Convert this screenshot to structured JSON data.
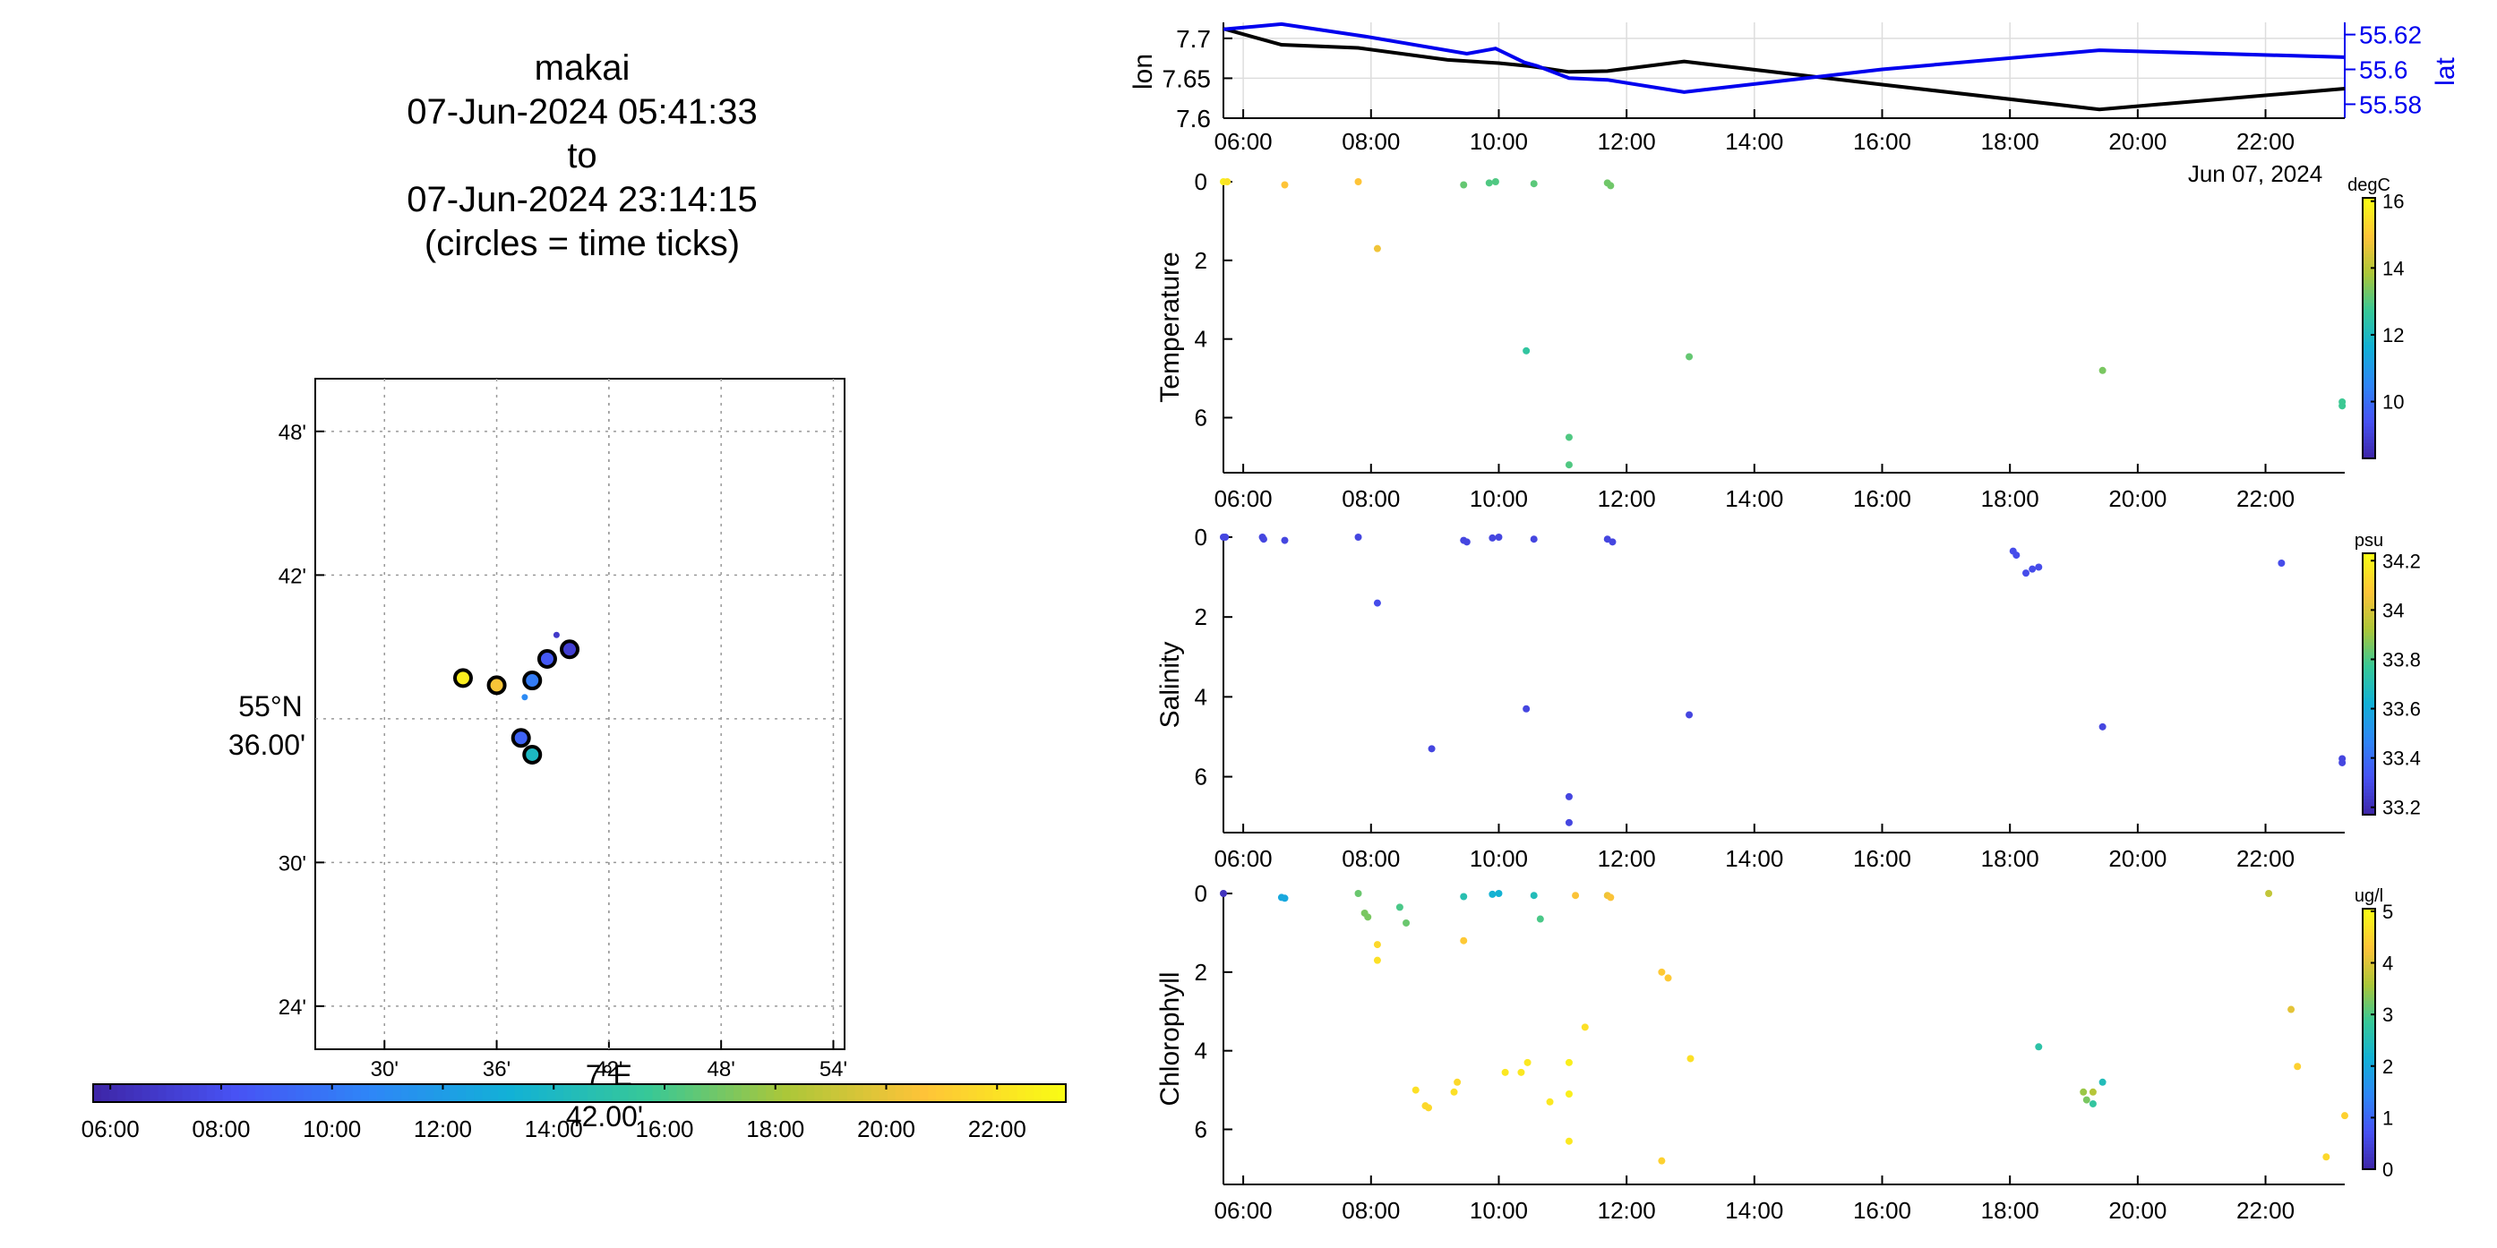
{
  "header": {
    "lines": [
      "makai",
      "07-Jun-2024 05:41:33",
      "to",
      "07-Jun-2024 23:14:15",
      "(circles = time ticks)"
    ]
  },
  "chart_data": [
    {
      "id": "map",
      "type": "scatter",
      "xlabel": "7°E 42.00'",
      "ylabel": "55°N 36.00'",
      "xticks": [
        "30'",
        "36'",
        "42'",
        "48'",
        "54'"
      ],
      "yticks": [
        "48'",
        "42'",
        "30'",
        "24'"
      ],
      "xlim_minutes": [
        26.3,
        54.6
      ],
      "ylim_minutes": [
        22.2,
        50.2
      ],
      "grid": true,
      "track_points": [
        {
          "lon_min": 34.2,
          "lat_min": 37.7,
          "hour": 22.6
        },
        {
          "lon_min": 36.0,
          "lat_min": 37.4,
          "hour": 20.5
        },
        {
          "lon_min": 37.9,
          "lat_min": 37.6,
          "hour": 10.2
        },
        {
          "lon_min": 38.7,
          "lat_min": 38.5,
          "hour": 8.5
        },
        {
          "lon_min": 39.9,
          "lat_min": 38.9,
          "hour": 7.1
        },
        {
          "lon_min": 37.3,
          "lat_min": 35.2,
          "hour": 9.0
        },
        {
          "lon_min": 37.9,
          "lat_min": 34.5,
          "hour": 14.0
        },
        {
          "lon_min": 37.5,
          "lat_min": 36.9,
          "hour": 10.9
        },
        {
          "lon_min": 39.2,
          "lat_min": 39.5,
          "hour": 6.8
        }
      ],
      "time_ticks": [
        {
          "lon_min": 34.2,
          "lat_min": 37.7,
          "hour": 22.6
        },
        {
          "lon_min": 36.0,
          "lat_min": 37.4,
          "hour": 20.5
        },
        {
          "lon_min": 37.9,
          "lat_min": 37.6,
          "hour": 10.2
        },
        {
          "lon_min": 38.7,
          "lat_min": 38.5,
          "hour": 8.5
        },
        {
          "lon_min": 39.9,
          "lat_min": 38.9,
          "hour": 7.1
        },
        {
          "lon_min": 37.3,
          "lat_min": 35.2,
          "hour": 9.0
        },
        {
          "lon_min": 37.9,
          "lat_min": 34.5,
          "hour": 14.0
        }
      ],
      "colorbar": {
        "ticks": [
          "06:00",
          "08:00",
          "10:00",
          "12:00",
          "14:00",
          "16:00",
          "18:00",
          "20:00",
          "22:00"
        ],
        "range_hours": [
          5.69,
          23.24
        ]
      }
    },
    {
      "id": "track",
      "type": "line",
      "ylabel": "lon",
      "ylabel_right": "lat",
      "date_label": "Jun 07, 2024",
      "xticks": [
        "06:00",
        "08:00",
        "10:00",
        "12:00",
        "14:00",
        "16:00",
        "18:00",
        "20:00",
        "22:00"
      ],
      "xlim_hours": [
        5.69,
        23.24
      ],
      "ylim_left": [
        7.6,
        7.72
      ],
      "yticks_left": [
        "7.7",
        "7.65",
        "7.6"
      ],
      "ylim_right": [
        55.572,
        55.627
      ],
      "yticks_right": [
        "55.62",
        "55.6",
        "55.58"
      ],
      "series": [
        {
          "name": "lon",
          "color": "#000000",
          "axis": "left",
          "points": [
            [
              5.69,
              7.712
            ],
            [
              6.6,
              7.692
            ],
            [
              7.8,
              7.688
            ],
            [
              9.2,
              7.673
            ],
            [
              10.0,
              7.669
            ],
            [
              10.5,
              7.665
            ],
            [
              11.1,
              7.658
            ],
            [
              11.7,
              7.659
            ],
            [
              12.9,
              7.671
            ],
            [
              16.0,
              7.642
            ],
            [
              19.4,
              7.611
            ],
            [
              23.24,
              7.637
            ]
          ]
        },
        {
          "name": "lat",
          "color": "#0000ee",
          "axis": "right",
          "points": [
            [
              5.69,
              55.623
            ],
            [
              6.6,
              55.626
            ],
            [
              7.9,
              55.619
            ],
            [
              9.5,
              55.609
            ],
            [
              9.95,
              55.612
            ],
            [
              10.4,
              55.604
            ],
            [
              10.6,
              55.602
            ],
            [
              11.1,
              55.595
            ],
            [
              11.7,
              55.594
            ],
            [
              12.9,
              55.587
            ],
            [
              16.0,
              55.6
            ],
            [
              19.4,
              55.611
            ],
            [
              23.24,
              55.607
            ]
          ]
        }
      ]
    },
    {
      "id": "temperature",
      "type": "scatter",
      "ylabel": "Temperature",
      "date_label": "Jun 07, 2024",
      "xticks": [
        "06:00",
        "08:00",
        "10:00",
        "12:00",
        "14:00",
        "16:00",
        "18:00",
        "20:00",
        "22:00"
      ],
      "yticks": [
        "0",
        "2",
        "4",
        "6"
      ],
      "xlim_hours": [
        5.69,
        23.24
      ],
      "ylim": [
        0,
        7.4
      ],
      "colorbar": {
        "unit": "degC",
        "range": [
          8.3,
          16.1
        ],
        "ticks": [
          "16",
          "14",
          "12",
          "10"
        ]
      },
      "points": [
        {
          "t": 5.69,
          "depth": 0.0,
          "value": 15.8
        },
        {
          "t": 5.75,
          "depth": 0.0,
          "value": 15.6
        },
        {
          "t": 6.65,
          "depth": 0.08,
          "value": 15.0
        },
        {
          "t": 7.8,
          "depth": 0.0,
          "value": 15.0
        },
        {
          "t": 8.1,
          "depth": 1.7,
          "value": 14.8
        },
        {
          "t": 9.45,
          "depth": 0.08,
          "value": 13.2
        },
        {
          "t": 9.85,
          "depth": 0.03,
          "value": 13.0
        },
        {
          "t": 9.95,
          "depth": 0.0,
          "value": 13.0
        },
        {
          "t": 10.55,
          "depth": 0.05,
          "value": 13.1
        },
        {
          "t": 11.7,
          "depth": 0.03,
          "value": 13.3
        },
        {
          "t": 11.75,
          "depth": 0.1,
          "value": 13.3
        },
        {
          "t": 10.43,
          "depth": 4.3,
          "value": 12.6
        },
        {
          "t": 12.98,
          "depth": 4.45,
          "value": 13.2
        },
        {
          "t": 11.1,
          "depth": 6.5,
          "value": 13.0
        },
        {
          "t": 11.1,
          "depth": 7.2,
          "value": 13.0
        },
        {
          "t": 19.45,
          "depth": 4.8,
          "value": 13.4
        },
        {
          "t": 23.2,
          "depth": 5.6,
          "value": 12.8
        },
        {
          "t": 23.2,
          "depth": 5.7,
          "value": 12.8
        }
      ]
    },
    {
      "id": "salinity",
      "type": "scatter",
      "ylabel": "Salinity",
      "date_label": "Jun 07, 2024",
      "xticks": [
        "06:00",
        "08:00",
        "10:00",
        "12:00",
        "14:00",
        "16:00",
        "18:00",
        "20:00",
        "22:00"
      ],
      "yticks": [
        "0",
        "2",
        "4",
        "6"
      ],
      "xlim_hours": [
        5.69,
        23.24
      ],
      "ylim": [
        0,
        7.4
      ],
      "colorbar": {
        "unit": "psu",
        "range": [
          33.17,
          34.23
        ],
        "ticks": [
          "34.2",
          "34",
          "33.8",
          "33.6",
          "33.4",
          "33.2"
        ]
      },
      "points": [
        {
          "t": 5.69,
          "depth": 0.0,
          "value": 33.28
        },
        {
          "t": 5.72,
          "depth": 0.0,
          "value": 33.28
        },
        {
          "t": 6.3,
          "depth": 0.0,
          "value": 33.28
        },
        {
          "t": 6.32,
          "depth": 0.05,
          "value": 33.28
        },
        {
          "t": 6.65,
          "depth": 0.08,
          "value": 33.28
        },
        {
          "t": 7.8,
          "depth": 0.0,
          "value": 33.28
        },
        {
          "t": 9.45,
          "depth": 0.08,
          "value": 33.28
        },
        {
          "t": 9.5,
          "depth": 0.12,
          "value": 33.28
        },
        {
          "t": 9.9,
          "depth": 0.02,
          "value": 33.28
        },
        {
          "t": 10.0,
          "depth": 0.0,
          "value": 33.28
        },
        {
          "t": 10.55,
          "depth": 0.05,
          "value": 33.28
        },
        {
          "t": 11.7,
          "depth": 0.05,
          "value": 33.28
        },
        {
          "t": 11.78,
          "depth": 0.12,
          "value": 33.28
        },
        {
          "t": 8.1,
          "depth": 1.65,
          "value": 33.3
        },
        {
          "t": 8.95,
          "depth": 5.3,
          "value": 33.28
        },
        {
          "t": 10.43,
          "depth": 4.3,
          "value": 33.28
        },
        {
          "t": 12.98,
          "depth": 4.45,
          "value": 33.28
        },
        {
          "t": 11.1,
          "depth": 6.5,
          "value": 33.28
        },
        {
          "t": 11.1,
          "depth": 7.15,
          "value": 33.28
        },
        {
          "t": 18.05,
          "depth": 0.35,
          "value": 33.3
        },
        {
          "t": 18.1,
          "depth": 0.45,
          "value": 33.3
        },
        {
          "t": 18.25,
          "depth": 0.9,
          "value": 33.3
        },
        {
          "t": 18.35,
          "depth": 0.8,
          "value": 33.3
        },
        {
          "t": 18.45,
          "depth": 0.75,
          "value": 33.3
        },
        {
          "t": 22.25,
          "depth": 0.65,
          "value": 33.3
        },
        {
          "t": 19.45,
          "depth": 4.75,
          "value": 33.28
        },
        {
          "t": 23.2,
          "depth": 5.55,
          "value": 33.28
        },
        {
          "t": 23.2,
          "depth": 5.65,
          "value": 33.28
        }
      ]
    },
    {
      "id": "chlorophyll",
      "type": "scatter",
      "ylabel": "Chlorophyll",
      "date_label": "Jun 07, 2024",
      "xticks": [
        "06:00",
        "08:00",
        "10:00",
        "12:00",
        "14:00",
        "16:00",
        "18:00",
        "20:00",
        "22:00"
      ],
      "yticks": [
        "0",
        "2",
        "4",
        "6"
      ],
      "xlim_hours": [
        5.69,
        23.24
      ],
      "ylim": [
        0,
        7.4
      ],
      "colorbar": {
        "unit": "ug/l",
        "range": [
          0,
          5.05
        ],
        "ticks": [
          "5",
          "4",
          "3",
          "2",
          "1",
          "0"
        ]
      },
      "points": [
        {
          "t": 5.69,
          "depth": 0.0,
          "value": 0.2
        },
        {
          "t": 6.6,
          "depth": 0.1,
          "value": 2.0
        },
        {
          "t": 6.65,
          "depth": 0.12,
          "value": 2.0
        },
        {
          "t": 7.8,
          "depth": 0.0,
          "value": 3.2
        },
        {
          "t": 7.9,
          "depth": 0.5,
          "value": 3.3
        },
        {
          "t": 7.95,
          "depth": 0.6,
          "value": 3.3
        },
        {
          "t": 8.45,
          "depth": 0.35,
          "value": 3.0
        },
        {
          "t": 8.55,
          "depth": 0.75,
          "value": 3.2
        },
        {
          "t": 8.1,
          "depth": 1.3,
          "value": 4.6
        },
        {
          "t": 8.1,
          "depth": 1.7,
          "value": 4.7
        },
        {
          "t": 9.45,
          "depth": 0.08,
          "value": 2.6
        },
        {
          "t": 9.9,
          "depth": 0.02,
          "value": 2.2
        },
        {
          "t": 10.0,
          "depth": 0.0,
          "value": 2.2
        },
        {
          "t": 10.55,
          "depth": 0.05,
          "value": 2.5
        },
        {
          "t": 10.65,
          "depth": 0.65,
          "value": 3.0
        },
        {
          "t": 11.2,
          "depth": 0.05,
          "value": 4.3
        },
        {
          "t": 11.7,
          "depth": 0.05,
          "value": 4.2
        },
        {
          "t": 11.75,
          "depth": 0.1,
          "value": 4.3
        },
        {
          "t": 9.45,
          "depth": 1.2,
          "value": 4.4
        },
        {
          "t": 8.7,
          "depth": 5.0,
          "value": 4.7
        },
        {
          "t": 8.85,
          "depth": 5.4,
          "value": 4.6
        },
        {
          "t": 8.9,
          "depth": 5.45,
          "value": 4.6
        },
        {
          "t": 9.35,
          "depth": 4.8,
          "value": 4.6
        },
        {
          "t": 9.3,
          "depth": 5.05,
          "value": 4.7
        },
        {
          "t": 10.1,
          "depth": 4.55,
          "value": 4.8
        },
        {
          "t": 10.35,
          "depth": 4.55,
          "value": 4.8
        },
        {
          "t": 10.45,
          "depth": 4.3,
          "value": 4.8
        },
        {
          "t": 10.8,
          "depth": 5.3,
          "value": 4.8
        },
        {
          "t": 11.1,
          "depth": 5.1,
          "value": 4.9
        },
        {
          "t": 11.1,
          "depth": 4.3,
          "value": 4.9
        },
        {
          "t": 11.1,
          "depth": 6.3,
          "value": 4.8
        },
        {
          "t": 11.35,
          "depth": 3.4,
          "value": 4.7
        },
        {
          "t": 12.55,
          "depth": 2.0,
          "value": 4.4
        },
        {
          "t": 12.65,
          "depth": 2.15,
          "value": 4.4
        },
        {
          "t": 13.0,
          "depth": 4.2,
          "value": 4.7
        },
        {
          "t": 12.55,
          "depth": 6.8,
          "value": 4.5
        },
        {
          "t": 18.45,
          "depth": 3.9,
          "value": 2.7
        },
        {
          "t": 19.15,
          "depth": 5.05,
          "value": 3.5
        },
        {
          "t": 19.2,
          "depth": 5.25,
          "value": 3.3
        },
        {
          "t": 19.3,
          "depth": 5.05,
          "value": 3.7
        },
        {
          "t": 19.3,
          "depth": 5.35,
          "value": 2.8
        },
        {
          "t": 19.45,
          "depth": 4.8,
          "value": 2.5
        },
        {
          "t": 22.05,
          "depth": 0.0,
          "value": 3.8
        },
        {
          "t": 22.4,
          "depth": 2.95,
          "value": 4.1
        },
        {
          "t": 22.5,
          "depth": 4.4,
          "value": 4.5
        },
        {
          "t": 22.95,
          "depth": 6.7,
          "value": 4.6
        },
        {
          "t": 23.24,
          "depth": 5.65,
          "value": 4.5
        }
      ]
    }
  ]
}
